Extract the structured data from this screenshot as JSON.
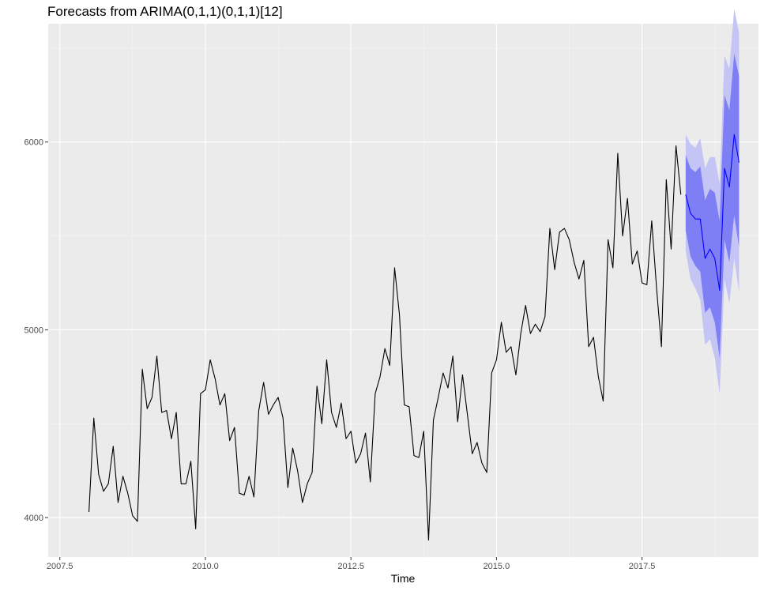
{
  "chart_data": {
    "type": "line",
    "title": "Forecasts from ARIMA(0,1,1)(0,1,1)[12]",
    "xlabel": "Time",
    "ylabel": "",
    "xlim": [
      2007.3,
      2019.5
    ],
    "ylim": [
      3790,
      6630
    ],
    "x_ticks": [
      2007.5,
      2010.0,
      2012.5,
      2015.0,
      2017.5
    ],
    "x_tick_labels": [
      "2007.5",
      "2010.0",
      "2012.5",
      "2015.0",
      "2017.5"
    ],
    "y_ticks": [
      4000,
      5000,
      6000
    ],
    "y_tick_labels": [
      "4000",
      "5000",
      "6000"
    ],
    "grid": true,
    "background": "#ebebeb",
    "history": {
      "start": 2008.0,
      "frequency": 12,
      "color": "#000000",
      "values": [
        4030,
        4530,
        4230,
        4140,
        4180,
        4380,
        4080,
        4220,
        4130,
        4010,
        3980,
        4790,
        4580,
        4640,
        4860,
        4560,
        4570,
        4420,
        4560,
        4180,
        4180,
        4300,
        3940,
        4660,
        4680,
        4840,
        4740,
        4600,
        4660,
        4410,
        4480,
        4130,
        4120,
        4220,
        4110,
        4570,
        4720,
        4550,
        4600,
        4640,
        4530,
        4160,
        4370,
        4250,
        4080,
        4180,
        4240,
        4700,
        4500,
        4840,
        4560,
        4480,
        4610,
        4420,
        4460,
        4290,
        4340,
        4450,
        4190,
        4660,
        4750,
        4900,
        4810,
        5330,
        5080,
        4600,
        4590,
        4330,
        4320,
        4460,
        3880,
        4520,
        4640,
        4770,
        4690,
        4860,
        4510,
        4760,
        4550,
        4340,
        4400,
        4290,
        4240,
        4770,
        4840,
        5040,
        4880,
        4910,
        4760,
        4980,
        5130,
        4980,
        5030,
        4990,
        5070,
        5540,
        5320,
        5520,
        5540,
        5480,
        5360,
        5270,
        5370,
        4910,
        4960,
        4750,
        4620,
        5480,
        5330,
        5940,
        5500,
        5700,
        5350,
        5420,
        5250,
        5240,
        5580,
        5220,
        4910,
        5800,
        5430,
        5980,
        5720
      ]
    },
    "forecast": {
      "start": 2018.25,
      "frequency": 12,
      "line_color": "#0000ff",
      "band_80_color": "#7f7ff5",
      "band_95_color": "#c4c4f5",
      "mean": [
        5720,
        5620,
        5590,
        5590,
        5380,
        5430,
        5380,
        5210,
        5860,
        5760,
        6040,
        5890
      ],
      "lower_80": [
        5530,
        5390,
        5340,
        5310,
        5090,
        5120,
        5040,
        4850,
        5480,
        5360,
        5610,
        5440
      ],
      "upper_80": [
        5930,
        5860,
        5840,
        5870,
        5690,
        5750,
        5730,
        5580,
        6250,
        6170,
        6470,
        6350
      ],
      "lower_95": [
        5420,
        5270,
        5220,
        5160,
        4920,
        4950,
        4850,
        4660,
        5270,
        5140,
        5380,
        5200
      ],
      "upper_95": [
        6040,
        5990,
        5970,
        6020,
        5860,
        5920,
        5920,
        5780,
        6460,
        6390,
        6710,
        6580
      ]
    }
  }
}
